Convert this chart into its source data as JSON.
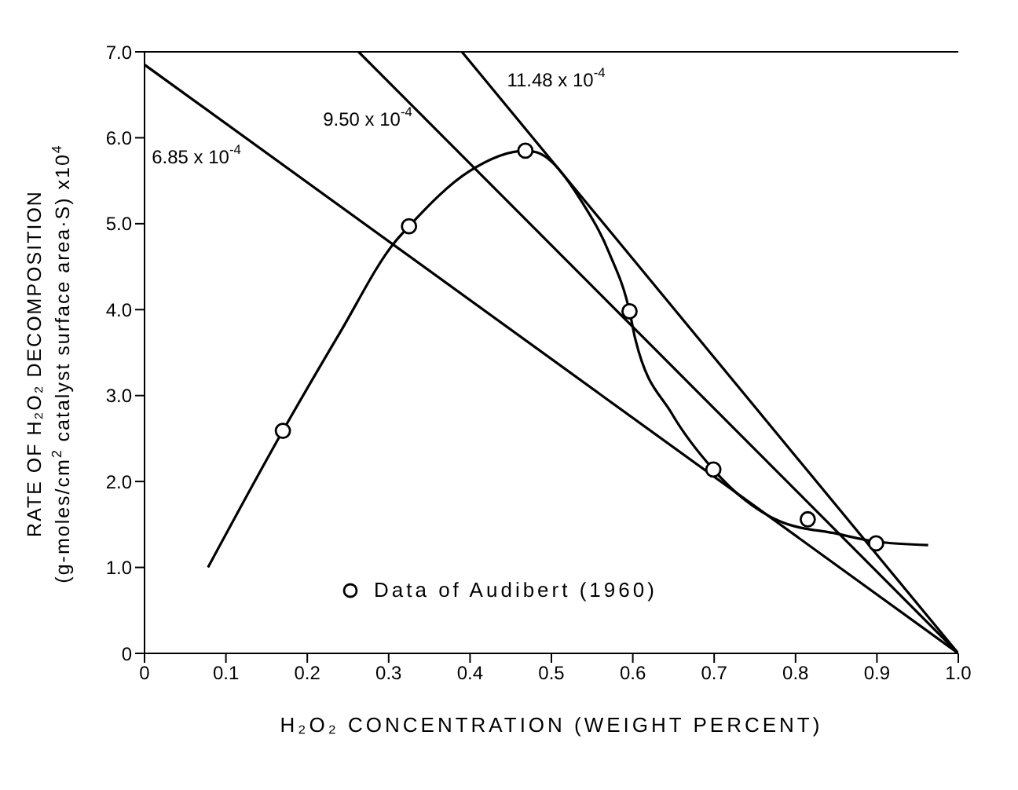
{
  "chart_data": {
    "type": "line",
    "xlabel": "H₂O₂ CONCENTRATION (WEIGHT PERCENT)",
    "ylabel": "RATE OF H₂O₂ DECOMPOSITION\n(g-moles/cm$^{2}$ catalyst surface area·S) x10$^{4}$",
    "xlim": [
      0,
      1.0
    ],
    "xticks": [
      {
        "value": 0,
        "label": "0"
      },
      0.1,
      0.2,
      0.3,
      0.4,
      0.5,
      0.6,
      0.7,
      0.8,
      0.9,
      {
        "value": 1.0,
        "label": "1.0"
      }
    ],
    "ylim": [
      0,
      7.0
    ],
    "yticks": [
      0,
      {
        "value": 1,
        "label": "1.0"
      },
      {
        "value": 2,
        "label": "2.0"
      },
      {
        "value": 3,
        "label": "3.0"
      },
      {
        "value": 4,
        "label": "4.0"
      },
      {
        "value": 5,
        "label": "5.0"
      },
      {
        "value": 6,
        "label": "6.0"
      },
      {
        "value": 7,
        "label": "7.0"
      }
    ],
    "legend": "bottom",
    "series": [
      {
        "name": "Data of Audibert (1960)",
        "type": "scatter",
        "marker": "circle",
        "color": "#000000",
        "x": [
          0.17,
          0.325,
          0.468,
          0.596,
          0.699,
          0.815,
          0.899
        ],
        "values": [
          2.59,
          4.97,
          5.85,
          3.98,
          2.14,
          1.56,
          1.28
        ]
      },
      {
        "color": "#000000",
        "x": [
          0.078,
          0.17,
          0.24,
          0.307,
          0.325,
          0.399,
          0.468,
          0.482,
          0.539,
          0.571,
          0.596,
          0.603,
          0.648,
          0.699,
          0.737,
          0.78,
          0.852,
          0.899,
          0.963
        ],
        "values": [
          1.0,
          2.59,
          3.73,
          4.78,
          4.97,
          5.61,
          5.85,
          5.83,
          5.23,
          4.66,
          3.98,
          3.66,
          2.79,
          2.14,
          1.79,
          1.54,
          1.39,
          1.3,
          1.26
        ]
      },
      {
        "color": "#000000",
        "x": [
          0,
          1.0
        ],
        "values": [
          6.85,
          0
        ]
      },
      {
        "color": "#000000",
        "x": [
          0.263,
          1.0
        ],
        "values": [
          7.0,
          0
        ]
      },
      {
        "color": "#000000",
        "x": [
          0.39,
          1.0
        ],
        "values": [
          7.0,
          0
        ]
      }
    ],
    "annotations": [
      "6.85 x 10$^{-4}$",
      "9.50 x 10$^{-4}$",
      "11.48 x 10$^{-4}$"
    ]
  }
}
